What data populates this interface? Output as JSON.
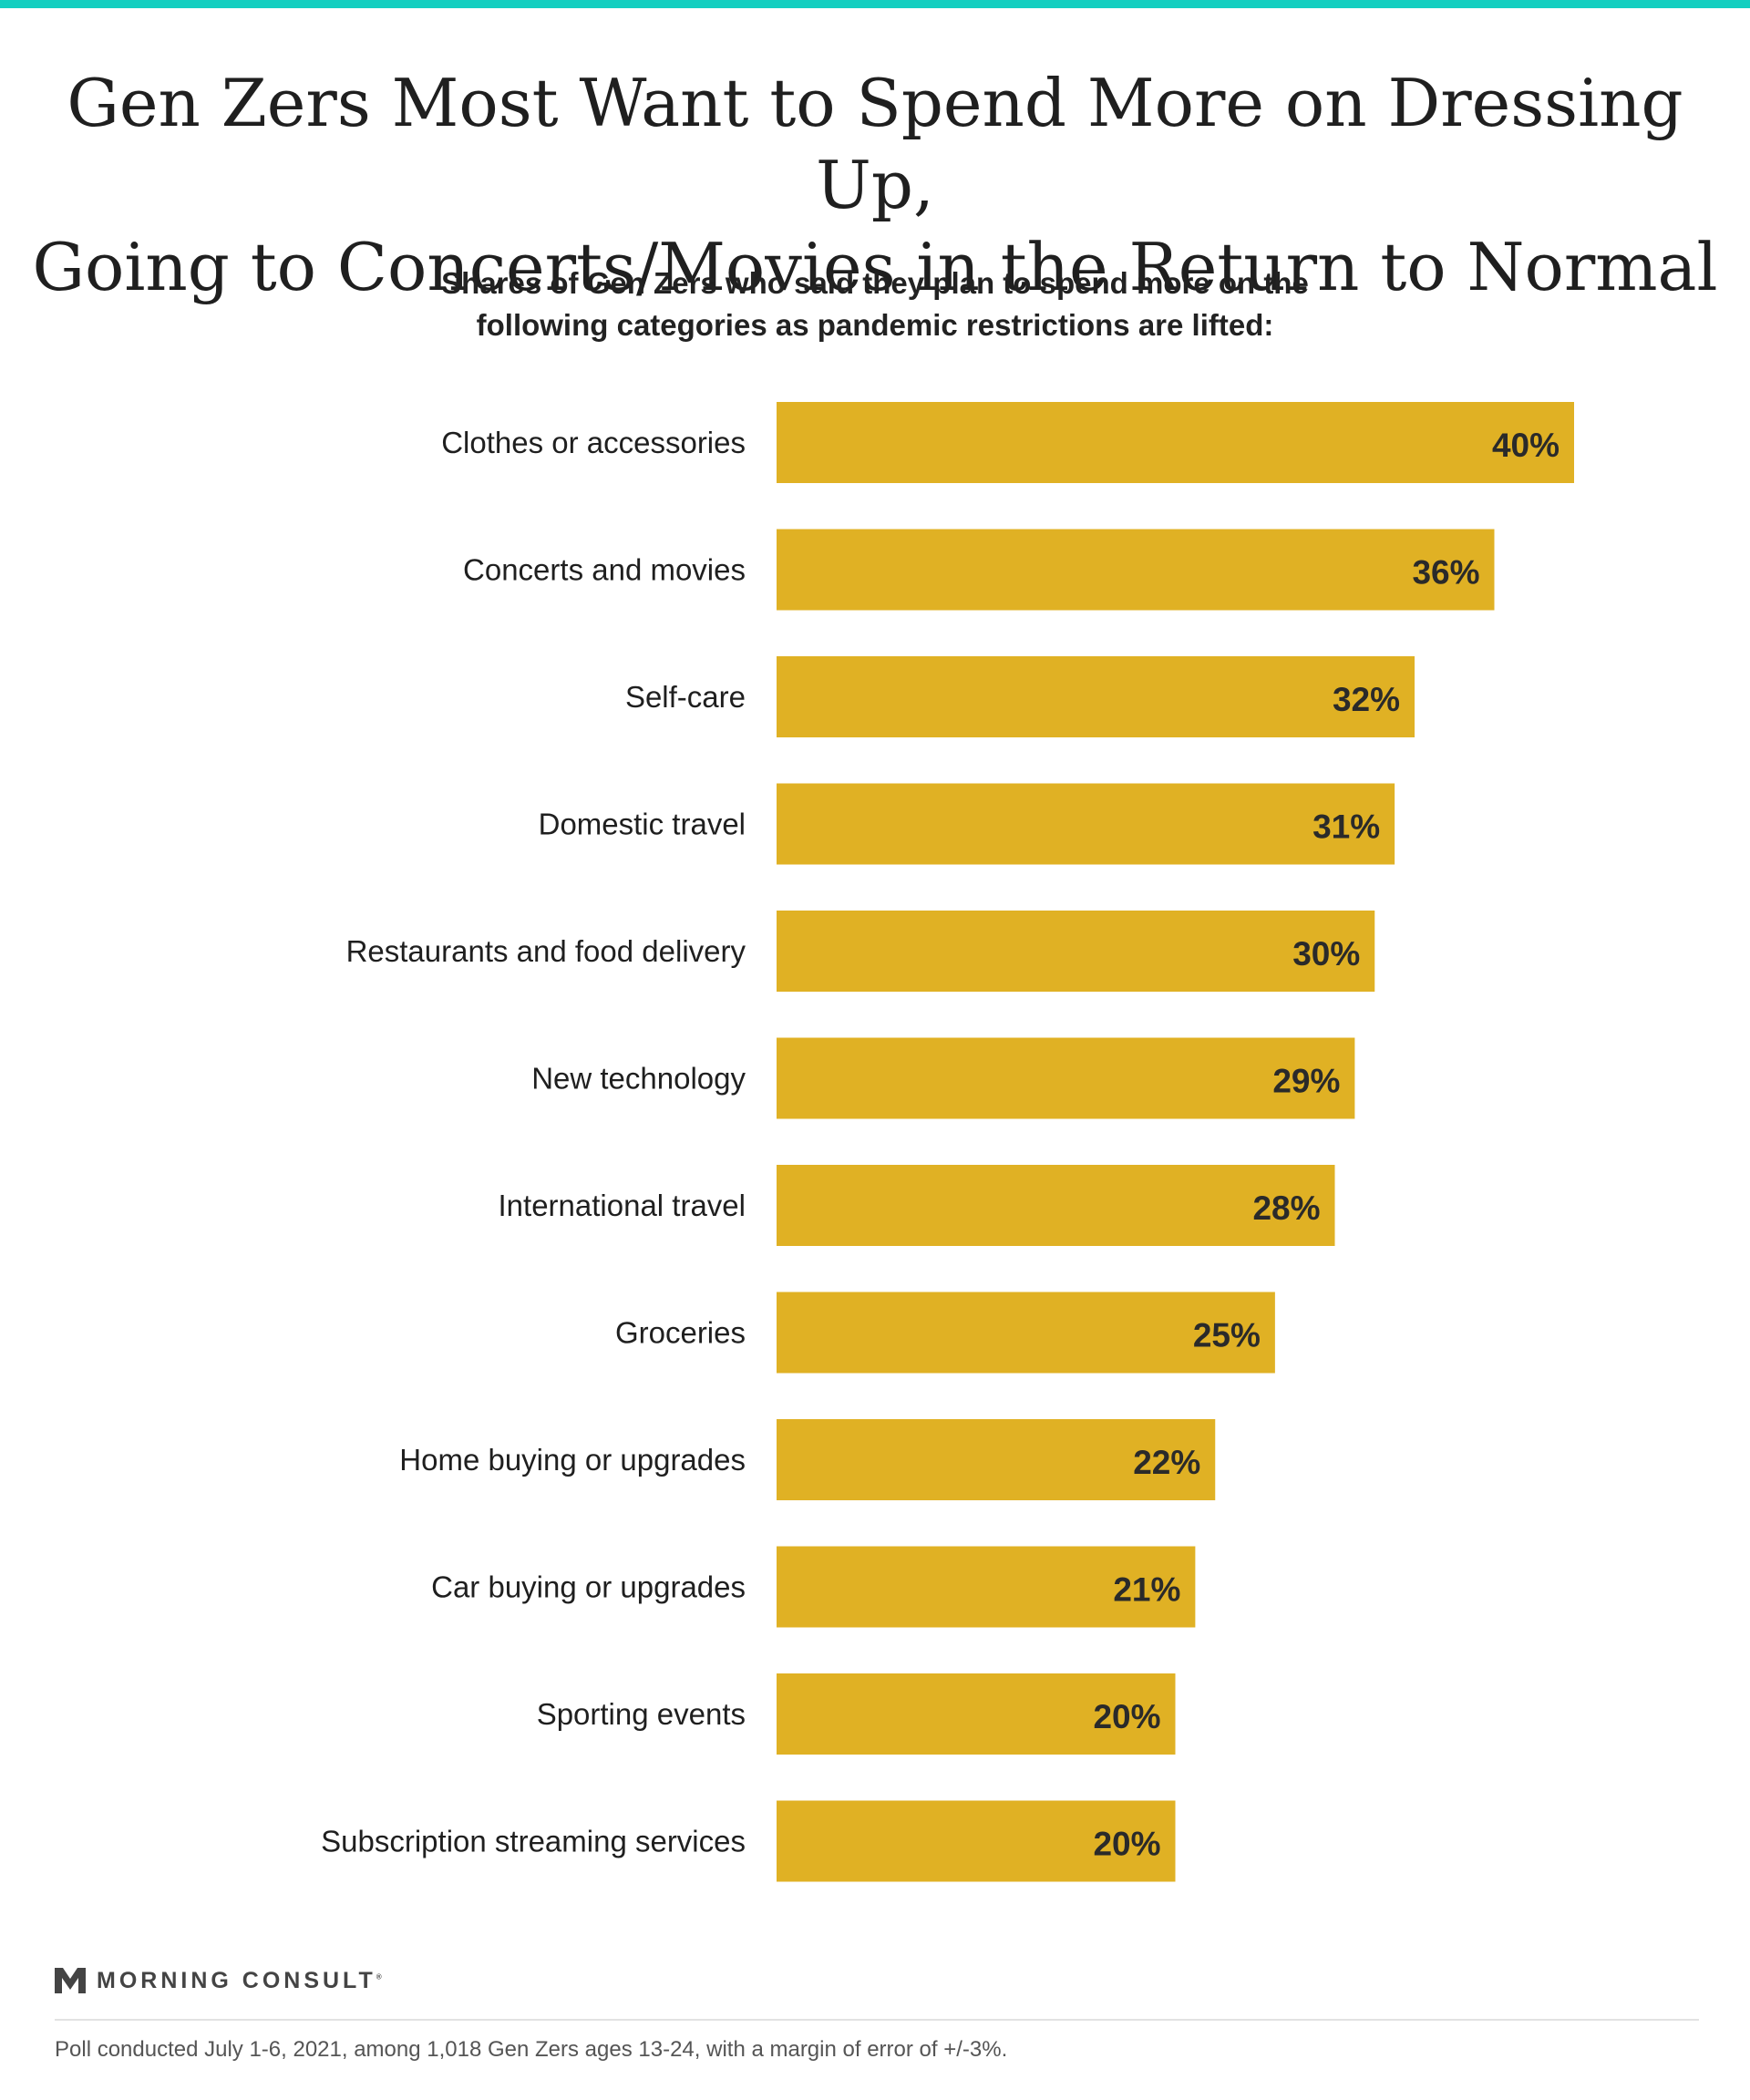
{
  "colors": {
    "accent_bar": "#14cfc0",
    "bar": "#e0b124",
    "label_text": "#1f1f1f",
    "value_text": "#2a2a2a"
  },
  "title_lines": [
    "Gen Zers Most Want to Spend More on Dressing Up,",
    "Going to Concerts/Movies in the Return to Normal"
  ],
  "subtitle_lines": [
    "Shares of Gen Zers who said they plan to spend more on the",
    "following categories as pandemic restrictions are lifted:"
  ],
  "chart_data": {
    "type": "bar",
    "orientation": "horizontal",
    "categories": [
      "Clothes or accessories",
      "Concerts and movies",
      "Self-care",
      "Domestic travel",
      "Restaurants and food delivery",
      "New technology",
      "International travel",
      "Groceries",
      "Home buying or upgrades",
      "Car buying or upgrades",
      "Sporting events",
      "Subscription streaming services"
    ],
    "values": [
      40,
      36,
      32,
      31,
      30,
      29,
      28,
      25,
      22,
      21,
      20,
      20
    ],
    "value_labels": [
      "40%",
      "36%",
      "32%",
      "31%",
      "30%",
      "29%",
      "28%",
      "25%",
      "22%",
      "21%",
      "20%",
      "20%"
    ],
    "xlim": [
      0,
      40
    ],
    "grid": false,
    "legend": "none"
  },
  "branding": {
    "logo_text": "MORNING CONSULT",
    "logo_mark": "®"
  },
  "footnote": "Poll conducted July 1-6, 2021, among 1,018 Gen Zers ages 13-24, with a margin of error of +/-3%."
}
